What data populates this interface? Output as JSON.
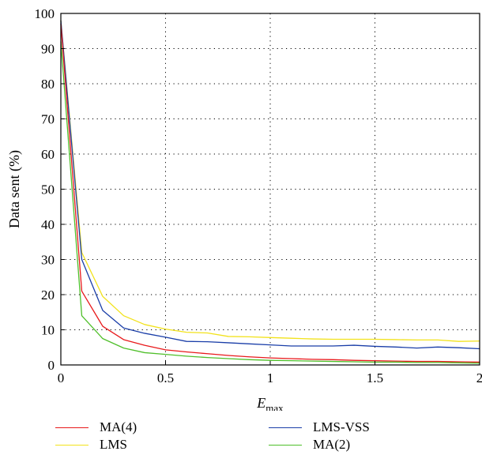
{
  "chart_data": {
    "type": "line",
    "xlabel_main": "E",
    "xlabel_sub": "max",
    "ylabel": "Data sent (%)",
    "xlim": [
      0,
      2
    ],
    "ylim": [
      0,
      100
    ],
    "xticks": [
      0,
      0.5,
      1,
      1.5,
      2
    ],
    "xtick_labels": [
      "0",
      "0.5",
      "1",
      "1.5",
      "2"
    ],
    "yticks": [
      0,
      10,
      20,
      30,
      40,
      50,
      60,
      70,
      80,
      90,
      100
    ],
    "ytick_labels": [
      "0",
      "10",
      "20",
      "30",
      "40",
      "50",
      "60",
      "70",
      "80",
      "90",
      "100"
    ],
    "grid": "dotted",
    "legend_position": "bottom",
    "x": [
      0,
      0.1,
      0.2,
      0.3,
      0.4,
      0.5,
      0.6,
      0.7,
      0.8,
      0.9,
      1.0,
      1.1,
      1.2,
      1.3,
      1.4,
      1.5,
      1.6,
      1.7,
      1.8,
      1.9,
      2.0
    ],
    "series": [
      {
        "name": "MA(4)",
        "color": "#e8191b",
        "values": [
          97,
          21,
          11,
          7.2,
          5.6,
          4.3,
          3.7,
          3.2,
          2.7,
          2.3,
          2.0,
          1.8,
          1.6,
          1.5,
          1.3,
          1.2,
          1.1,
          1.0,
          1.0,
          0.9,
          0.8
        ]
      },
      {
        "name": "LMS-VSS",
        "color": "#1a3ea8",
        "values": [
          98,
          30,
          15.5,
          10.5,
          9.0,
          7.9,
          6.7,
          6.6,
          6.3,
          6.0,
          5.7,
          5.4,
          5.4,
          5.4,
          5.6,
          5.3,
          5.1,
          4.8,
          5.1,
          4.9,
          4.6
        ]
      },
      {
        "name": "LMS",
        "color": "#f2e21b",
        "values": [
          98,
          32,
          19.5,
          14,
          11.5,
          10.2,
          9.3,
          9.1,
          8.1,
          8.0,
          7.8,
          7.6,
          7.4,
          7.3,
          7.3,
          7.3,
          7.2,
          7.1,
          7.1,
          6.7,
          6.8
        ]
      },
      {
        "name": "MA(2)",
        "color": "#4fbf2a",
        "values": [
          92,
          14,
          7.5,
          4.8,
          3.5,
          3.0,
          2.5,
          2.1,
          1.8,
          1.5,
          1.3,
          1.2,
          1.1,
          1.0,
          0.9,
          0.8,
          0.8,
          0.7,
          0.7,
          0.6,
          0.5
        ]
      }
    ]
  },
  "legend": {
    "items": [
      {
        "label": "MA(4)",
        "color": "#e8191b"
      },
      {
        "label": "LMS-VSS",
        "color": "#1a3ea8"
      },
      {
        "label": "LMS",
        "color": "#f2e21b"
      },
      {
        "label": "MA(2)",
        "color": "#4fbf2a"
      }
    ]
  }
}
